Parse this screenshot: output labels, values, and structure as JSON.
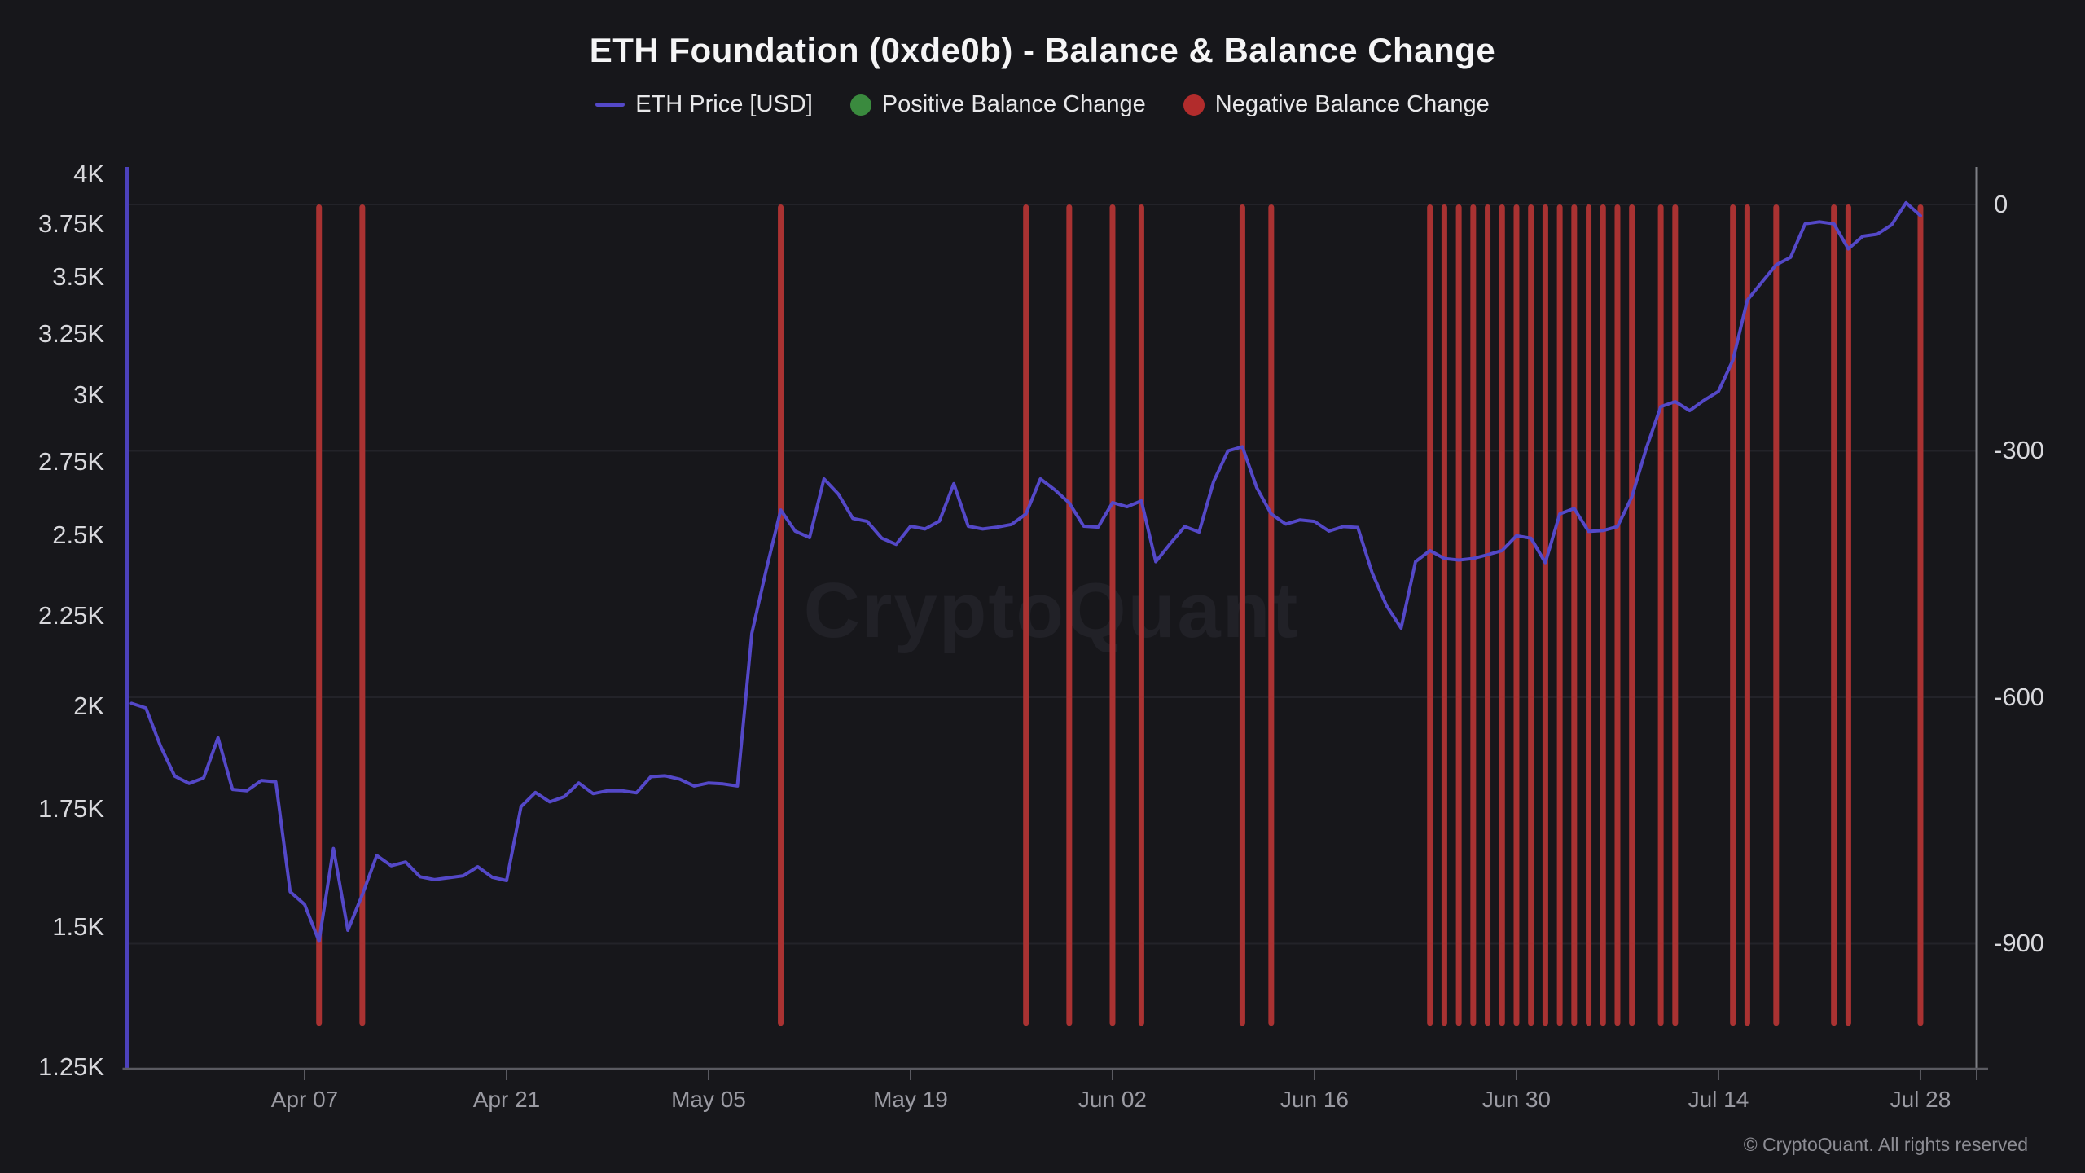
{
  "title": "ETH Foundation (0xde0b) - Balance & Balance Change",
  "legend": [
    {
      "label": "ETH Price [USD]",
      "swatch": "line",
      "color": "#5448c8"
    },
    {
      "label": "Positive Balance Change",
      "swatch": "dot",
      "color": "#3a8a3e"
    },
    {
      "label": "Negative Balance Change",
      "swatch": "dot",
      "color": "#b22c2c"
    }
  ],
  "watermark": "CryptoQuant",
  "footer": "© CryptoQuant. All rights reserved",
  "colors": {
    "background": "#17171b",
    "price_line": "#5448c8",
    "left_axis_line": "#4c41bc",
    "negative_bar": "#a93232",
    "positive_dot": "#3a8a3e",
    "gridline": "#232329",
    "x_axis_line": "#5a5a61",
    "right_axis_line": "#7e7f85",
    "y_tick_text": "#d8d8dc",
    "x_tick_text": "#9b9ba3",
    "title_text": "#f5f5f6",
    "watermark_text": "#212127",
    "footer_text": "#8c8c93"
  },
  "chart_data": {
    "type": "combo",
    "title": "ETH Foundation (0xde0b) - Balance & Balance Change",
    "left_axis": {
      "label": "ETH Price [USD]",
      "scale": "log",
      "tick_labels": [
        "4K",
        "3.75K",
        "3.5K",
        "3.25K",
        "3K",
        "2.75K",
        "2.5K",
        "2.25K",
        "2K",
        "1.75K",
        "1.5K",
        "1.25K"
      ],
      "tick_values": [
        4000,
        3750,
        3500,
        3250,
        3000,
        2750,
        2500,
        2250,
        2000,
        1750,
        1500,
        1250
      ],
      "range": [
        1250,
        4000
      ]
    },
    "right_axis": {
      "label": "Balance Change",
      "scale": "linear",
      "tick_labels": [
        "0",
        "-300",
        "-600",
        "-900"
      ],
      "tick_values": [
        0,
        -300,
        -600,
        -900
      ],
      "grid": true
    },
    "x_axis": {
      "tick_labels": [
        "Apr 07",
        "Apr 21",
        "May 05",
        "May 19",
        "Jun 02",
        "Jun 16",
        "Jun 30",
        "Jul 14",
        "Jul 28"
      ],
      "tick_dates": [
        "2025-04-07",
        "2025-04-21",
        "2025-05-05",
        "2025-05-19",
        "2025-06-02",
        "2025-06-16",
        "2025-06-30",
        "2025-07-14",
        "2025-07-28"
      ],
      "range_dates": [
        "2025-03-25",
        "2025-08-01"
      ]
    },
    "series": [
      {
        "name": "ETH Price [USD]",
        "type": "line",
        "axis": "left",
        "color": "#5448c8",
        "start_date": "2025-03-26",
        "values": [
          2008,
          1996,
          1900,
          1826,
          1809,
          1822,
          1920,
          1795,
          1792,
          1816,
          1813,
          1571,
          1545,
          1473,
          1662,
          1494,
          1565,
          1647,
          1625,
          1633,
          1602,
          1596,
          1600,
          1604,
          1623,
          1601,
          1594,
          1755,
          1788,
          1766,
          1778,
          1810,
          1785,
          1792,
          1792,
          1787,
          1825,
          1827,
          1819,
          1803,
          1810,
          1808,
          1803,
          2200,
          2390,
          2583,
          2513,
          2492,
          2690,
          2637,
          2555,
          2545,
          2490,
          2470,
          2529,
          2520,
          2546,
          2673,
          2529,
          2520,
          2526,
          2535,
          2570,
          2690,
          2652,
          2607,
          2529,
          2526,
          2608,
          2594,
          2614,
          2415,
          2472,
          2528,
          2510,
          2680,
          2790,
          2805,
          2659,
          2570,
          2536,
          2550,
          2545,
          2513,
          2528,
          2525,
          2380,
          2280,
          2215,
          2415,
          2450,
          2425,
          2420,
          2425,
          2437,
          2450,
          2498,
          2490,
          2412,
          2570,
          2588,
          2512,
          2515,
          2528,
          2628,
          2800,
          2955,
          2975,
          2940,
          2980,
          3015,
          3140,
          3395,
          3475,
          3555,
          3590,
          3750,
          3760,
          3750,
          3630,
          3690,
          3700,
          3745,
          3855,
          3790
        ]
      },
      {
        "name": "Negative Balance Change",
        "type": "bar",
        "axis": "right",
        "color": "#a93232",
        "bar_value": -1000,
        "dates": [
          "2025-04-08",
          "2025-04-11",
          "2025-05-10",
          "2025-05-27",
          "2025-05-30",
          "2025-06-02",
          "2025-06-04",
          "2025-06-11",
          "2025-06-13",
          "2025-06-24",
          "2025-06-25",
          "2025-06-26",
          "2025-06-27",
          "2025-06-28",
          "2025-06-29",
          "2025-06-30",
          "2025-07-01",
          "2025-07-02",
          "2025-07-03",
          "2025-07-04",
          "2025-07-05",
          "2025-07-06",
          "2025-07-07",
          "2025-07-08",
          "2025-07-10",
          "2025-07-11",
          "2025-07-15",
          "2025-07-16",
          "2025-07-18",
          "2025-07-22",
          "2025-07-23",
          "2025-07-28"
        ]
      },
      {
        "name": "Positive Balance Change",
        "type": "bar",
        "axis": "right",
        "color": "#3a8a3e",
        "bar_value": 0,
        "dates": []
      }
    ]
  }
}
